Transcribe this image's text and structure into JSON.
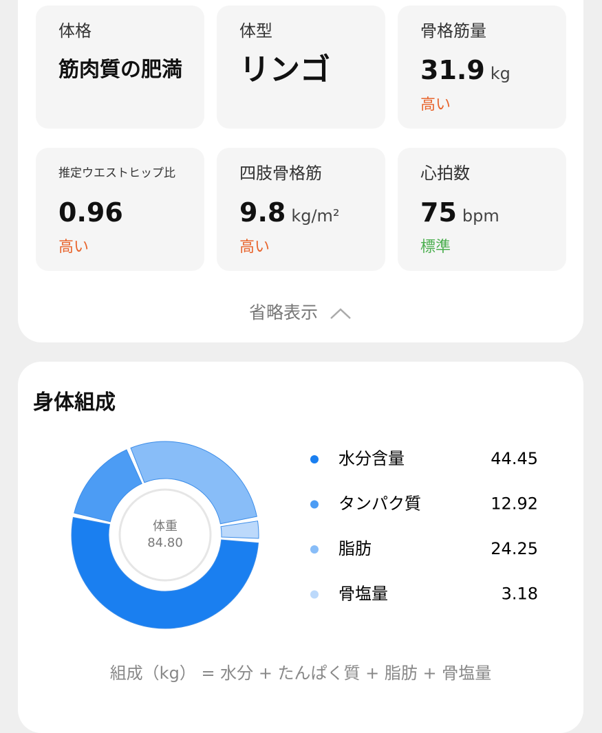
{
  "metrics": [
    {
      "label": "体格",
      "value": "筋肉質の肥満"
    },
    {
      "label": "体型",
      "value": "リンゴ"
    },
    {
      "label": "骨格筋量",
      "value": 31.9,
      "unit": "kg",
      "status": "高い",
      "status_color": "#e8642c"
    },
    {
      "label": "推定ウエストヒップ比",
      "value": 0.96,
      "status": "高い",
      "status_color": "#e8642c"
    },
    {
      "label": "四肢骨格筋",
      "value": 9.8,
      "unit": "kg/m²",
      "status": "高い",
      "status_color": "#e8642c"
    },
    {
      "label": "心拍数",
      "value": 75,
      "unit": "bpm",
      "status": "標準",
      "status_color": "#4caf50"
    }
  ],
  "collapse_label": "省略表示",
  "composition": {
    "title": "身体組成",
    "center_label": "体重",
    "center_value": "84.80",
    "items": [
      {
        "name": "水分含量",
        "value": 44.45,
        "color": "#1a7ff0"
      },
      {
        "name": "タンパク質",
        "value": 12.92,
        "color": "#4c9cf4"
      },
      {
        "name": "脂肪",
        "value": 24.25,
        "color": "#88bdf8"
      },
      {
        "name": "骨塩量",
        "value": 3.18,
        "color": "#bcd9fb"
      }
    ],
    "formula": "組成（kg） = 水分 + たんぱく質 + 脂肪 + 骨塩量"
  }
}
